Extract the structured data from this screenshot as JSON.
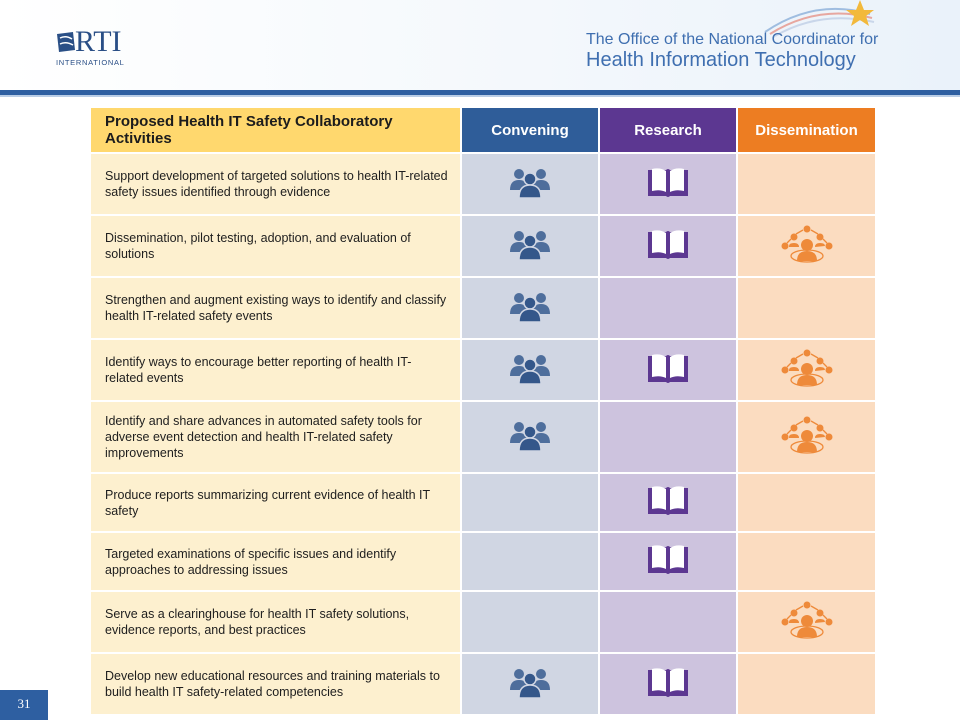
{
  "header": {
    "logo_text": "RTI",
    "logo_subtext": "INTERNATIONAL",
    "onc_line1": "The Office of the National Coordinator for",
    "onc_line2": "Health Information Technology"
  },
  "table": {
    "headers": {
      "activities": "Proposed Health IT Safety Collaboratory Activities",
      "convening": "Convening",
      "research": "Research",
      "dissemination": "Dissemination"
    },
    "rows": [
      {
        "activity": "Support development of targeted solutions to health IT-related safety issues identified through evidence",
        "convening": true,
        "research": true,
        "dissemination": false
      },
      {
        "activity": "Dissemination, pilot testing, adoption, and evaluation of solutions",
        "convening": true,
        "research": true,
        "dissemination": true
      },
      {
        "activity": "Strengthen and augment existing ways to identify and classify health IT-related safety events",
        "convening": true,
        "research": false,
        "dissemination": false
      },
      {
        "activity": "Identify ways to encourage better reporting of health IT-related events",
        "convening": true,
        "research": true,
        "dissemination": true
      },
      {
        "activity": "Identify and share advances in automated safety tools for adverse event detection and health IT-related safety improvements",
        "convening": true,
        "research": false,
        "dissemination": true
      },
      {
        "activity": "Produce reports summarizing current evidence of health IT safety",
        "convening": false,
        "research": true,
        "dissemination": false
      },
      {
        "activity": "Targeted examinations of specific issues and identify approaches to addressing issues",
        "convening": false,
        "research": true,
        "dissemination": false
      },
      {
        "activity": "Serve as a clearinghouse for health IT safety solutions, evidence reports, and best practices",
        "convening": false,
        "research": false,
        "dissemination": true
      },
      {
        "activity": "Develop new educational resources and training materials to build health IT safety-related competencies",
        "convening": true,
        "research": true,
        "dissemination": false
      }
    ]
  },
  "icons": {
    "convening": "people-group-icon",
    "research": "open-book-icon",
    "dissemination": "network-people-icon"
  },
  "colors": {
    "convening": "#2f5d99",
    "research": "#5c3791",
    "dissemination": "#ed7d22",
    "activities_header": "#ffd86e"
  },
  "footer": {
    "page_number": "31"
  }
}
